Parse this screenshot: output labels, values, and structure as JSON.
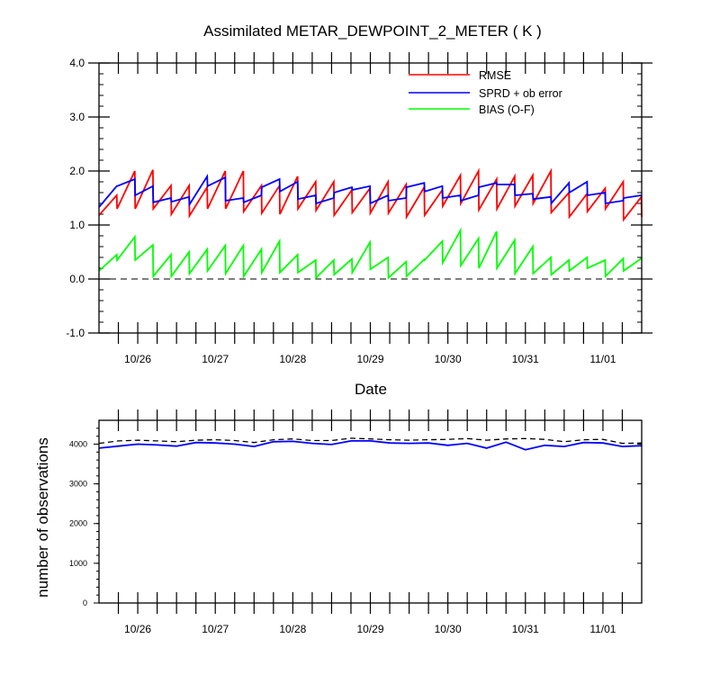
{
  "chart_data": [
    {
      "type": "line",
      "title": "Assimilated METAR_DEWPOINT_2_METER ( K )",
      "xlabel": "Date",
      "ylabel": "",
      "ylim": [
        -1.0,
        4.0
      ],
      "yticks": [
        -1.0,
        0.0,
        1.0,
        2.0,
        3.0,
        4.0
      ],
      "ytick_labels": [
        "-1.0",
        "0.0",
        "1.0",
        "2.0",
        "3.0",
        "4.0"
      ],
      "xlim": [
        0,
        28
      ],
      "xtick_labels": [
        "10/26",
        "10/27",
        "10/28",
        "10/29",
        "10/30",
        "10/31",
        "11/01"
      ],
      "xtick_positions": [
        2,
        6,
        10,
        14,
        18,
        22,
        26
      ],
      "legend": "top-right",
      "reference_line": 0.0,
      "series": [
        {
          "name": "RMSE",
          "color": "#ff0000",
          "style": "sawtooth",
          "pairs": [
            [
              1.18,
              1.55
            ],
            [
              1.3,
              2.0
            ],
            [
              1.3,
              2.02
            ],
            [
              1.3,
              1.73
            ],
            [
              1.2,
              1.73
            ],
            [
              1.17,
              1.7
            ],
            [
              1.3,
              2.0
            ],
            [
              1.3,
              2.0
            ],
            [
              1.25,
              1.73
            ],
            [
              1.22,
              1.73
            ],
            [
              1.2,
              1.9
            ],
            [
              1.3,
              1.8
            ],
            [
              1.27,
              1.8
            ],
            [
              1.18,
              1.65
            ],
            [
              1.23,
              1.68
            ],
            [
              1.22,
              1.8
            ],
            [
              1.22,
              1.75
            ],
            [
              1.15,
              1.7
            ],
            [
              1.18,
              1.65
            ],
            [
              1.35,
              1.92
            ],
            [
              1.4,
              2.0
            ],
            [
              1.28,
              1.85
            ],
            [
              1.3,
              1.9
            ],
            [
              1.35,
              1.92
            ],
            [
              1.4,
              2.0
            ],
            [
              1.23,
              1.6
            ],
            [
              1.15,
              1.58
            ],
            [
              1.25,
              1.68
            ],
            [
              1.3,
              1.8
            ],
            [
              1.1,
              1.52
            ]
          ],
          "end": 1.15
        },
        {
          "name": "SPRD + ob error",
          "color": "#0000ff",
          "style": "sawtooth",
          "pairs": [
            [
              1.33,
              1.72
            ],
            [
              1.72,
              1.85
            ],
            [
              1.55,
              1.72
            ],
            [
              1.42,
              1.5
            ],
            [
              1.43,
              1.52
            ],
            [
              1.38,
              1.9
            ],
            [
              1.72,
              1.88
            ],
            [
              1.45,
              1.5
            ],
            [
              1.42,
              1.55
            ],
            [
              1.7,
              1.85
            ],
            [
              1.62,
              1.8
            ],
            [
              1.48,
              1.55
            ],
            [
              1.4,
              1.5
            ],
            [
              1.6,
              1.7
            ],
            [
              1.65,
              1.72
            ],
            [
              1.4,
              1.55
            ],
            [
              1.45,
              1.5
            ],
            [
              1.7,
              1.78
            ],
            [
              1.62,
              1.72
            ],
            [
              1.5,
              1.55
            ],
            [
              1.45,
              1.55
            ],
            [
              1.7,
              1.78
            ],
            [
              1.75,
              1.75
            ],
            [
              1.55,
              1.58
            ],
            [
              1.48,
              1.52
            ],
            [
              1.4,
              1.78
            ],
            [
              1.6,
              1.8
            ],
            [
              1.55,
              1.6
            ],
            [
              1.4,
              1.45
            ],
            [
              1.5,
              1.55
            ]
          ],
          "end": 1.55
        },
        {
          "name": "BIAS (O-F)",
          "color": "#00ff00",
          "style": "sawtooth",
          "pairs": [
            [
              0.15,
              0.45
            ],
            [
              0.35,
              0.78
            ],
            [
              0.35,
              0.63
            ],
            [
              0.05,
              0.45
            ],
            [
              0.05,
              0.5
            ],
            [
              0.1,
              0.55
            ],
            [
              0.15,
              0.62
            ],
            [
              0.1,
              0.62
            ],
            [
              0.05,
              0.55
            ],
            [
              0.12,
              0.7
            ],
            [
              0.12,
              0.45
            ],
            [
              0.12,
              0.35
            ],
            [
              0.02,
              0.35
            ],
            [
              0.08,
              0.37
            ],
            [
              0.12,
              0.68
            ],
            [
              0.18,
              0.4
            ],
            [
              0.02,
              0.32
            ],
            [
              0.05,
              0.36
            ],
            [
              0.35,
              0.7
            ],
            [
              0.3,
              0.9
            ],
            [
              0.25,
              0.75
            ],
            [
              0.2,
              0.88
            ],
            [
              0.2,
              0.72
            ],
            [
              0.1,
              0.6
            ],
            [
              0.1,
              0.4
            ],
            [
              0.08,
              0.35
            ],
            [
              0.15,
              0.4
            ],
            [
              0.2,
              0.35
            ],
            [
              0.05,
              0.38
            ],
            [
              0.15,
              0.38
            ]
          ],
          "end": 0.38
        }
      ]
    },
    {
      "type": "line",
      "title": "",
      "xlabel": "",
      "ylabel": "number of observations",
      "ylim": [
        0,
        4600
      ],
      "yticks": [
        0,
        1000,
        2000,
        3000,
        4000
      ],
      "ytick_labels": [
        "0",
        "1000",
        "2000",
        "3000",
        "4000"
      ],
      "xlim": [
        0,
        28
      ],
      "xtick_labels": [
        "10/26",
        "10/27",
        "10/28",
        "10/29",
        "10/30",
        "10/31",
        "11/01"
      ],
      "xtick_positions": [
        2,
        6,
        10,
        14,
        18,
        22,
        26
      ],
      "series": [
        {
          "color": "#000000",
          "dash": true,
          "x": [
            0,
            1,
            2,
            3,
            4,
            5,
            6,
            7,
            8,
            9,
            10,
            11,
            12,
            13,
            14,
            15,
            16,
            17,
            18,
            19,
            20,
            21,
            22,
            23,
            24,
            25,
            26,
            27,
            28
          ],
          "y": [
            4020,
            4080,
            4100,
            4080,
            4060,
            4100,
            4110,
            4090,
            4040,
            4110,
            4130,
            4090,
            4090,
            4150,
            4130,
            4110,
            4100,
            4110,
            4120,
            4140,
            4100,
            4130,
            4140,
            4120,
            4060,
            4110,
            4120,
            4020,
            4030
          ]
        },
        {
          "color": "#0000ff",
          "dash": false,
          "x": [
            0,
            1,
            2,
            3,
            4,
            5,
            6,
            7,
            8,
            9,
            10,
            11,
            12,
            13,
            14,
            15,
            16,
            17,
            18,
            19,
            20,
            21,
            22,
            23,
            24,
            25,
            26,
            27,
            28
          ],
          "y": [
            3900,
            3950,
            4000,
            3980,
            3950,
            4040,
            4030,
            4000,
            3940,
            4060,
            4070,
            4020,
            3990,
            4080,
            4080,
            4030,
            4020,
            4030,
            3970,
            4020,
            3900,
            4050,
            3860,
            3970,
            3940,
            4040,
            4030,
            3940,
            3960
          ]
        }
      ]
    }
  ]
}
